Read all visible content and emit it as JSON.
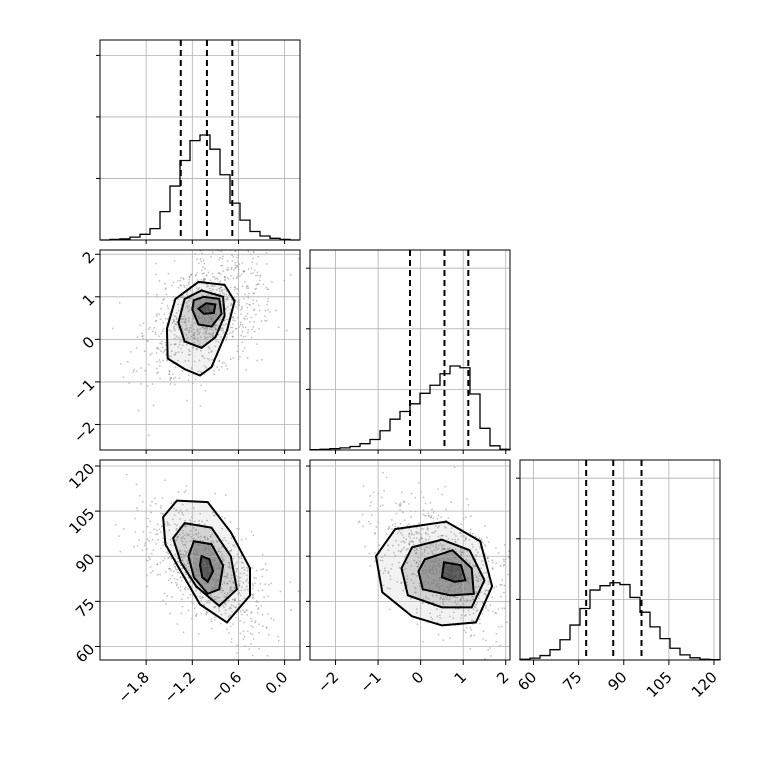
{
  "chart_data": {
    "type": "corner",
    "params": [
      {
        "ticks": [
          -1.8,
          -1.2,
          -0.6,
          0.0
        ],
        "tick_labels": [
          "−1.8",
          "−1.2",
          "−0.6",
          "0.0"
        ],
        "range": [
          -2.4,
          0.2
        ]
      },
      {
        "ticks": [
          -2,
          -1,
          0,
          1,
          2
        ],
        "tick_labels": [
          "−2",
          "−1",
          "0",
          "1",
          "2"
        ],
        "range": [
          -2.6,
          2.1
        ]
      },
      {
        "ticks": [
          60,
          75,
          90,
          105,
          120
        ],
        "tick_labels": [
          "60",
          "75",
          "90",
          "105",
          "120"
        ],
        "range": [
          55.5,
          122
        ]
      }
    ],
    "quantiles": [
      [
        -1.35,
        -1.01,
        -0.68
      ],
      [
        -0.25,
        0.56,
        1.12
      ],
      [
        77.5,
        86.5,
        95.9
      ]
    ],
    "hist_edges": [
      [
        -2.4,
        -2.27,
        -2.14,
        -2.01,
        -1.88,
        -1.75,
        -1.62,
        -1.49,
        -1.36,
        -1.23,
        -1.1,
        -0.97,
        -0.84,
        -0.71,
        -0.58,
        -0.45,
        -0.32,
        -0.19,
        -0.06,
        0.07,
        0.2
      ],
      [
        -2.6,
        -2.365,
        -2.13,
        -1.895,
        -1.66,
        -1.425,
        -1.19,
        -0.955,
        -0.72,
        -0.485,
        -0.25,
        -0.015,
        0.22,
        0.455,
        0.69,
        0.925,
        1.16,
        1.395,
        1.63,
        1.865,
        2.1
      ],
      [
        55.5,
        58.825,
        62.15,
        65.475,
        68.8,
        72.125,
        75.45,
        78.775,
        82.1,
        85.425,
        88.75,
        92.075,
        95.4,
        98.725,
        102.05,
        105.375,
        108.7,
        112.025,
        115.35,
        118.675,
        122
      ]
    ],
    "hist_counts": [
      [
        0,
        1,
        2,
        5,
        10,
        20,
        50,
        95,
        140,
        175,
        185,
        160,
        115,
        65,
        35,
        15,
        7,
        3,
        1,
        0
      ],
      [
        1,
        2,
        4,
        6,
        10,
        18,
        30,
        55,
        88,
        110,
        132,
        162,
        185,
        218,
        240,
        235,
        160,
        62,
        12,
        2
      ],
      [
        2,
        5,
        12,
        28,
        55,
        95,
        140,
        190,
        202,
        210,
        205,
        170,
        130,
        90,
        58,
        32,
        14,
        6,
        2,
        1
      ]
    ],
    "hist_ymax": [
      0.325,
      0.33,
      0.33
    ],
    "hist_ticks": [
      0.1,
      0.2,
      0.3
    ],
    "pairs": [
      {
        "x_param": 0,
        "y_param": 1,
        "contours": [
          [
            [
              -1.12,
              1.35
            ],
            [
              -0.78,
              1.28
            ],
            [
              -0.65,
              0.9
            ],
            [
              -0.75,
              0.2
            ],
            [
              -0.95,
              -0.65
            ],
            [
              -1.1,
              -0.85
            ],
            [
              -1.3,
              -0.7
            ],
            [
              -1.52,
              -0.45
            ],
            [
              -1.53,
              0.25
            ],
            [
              -1.42,
              0.95
            ]
          ],
          [
            [
              -1.08,
              1.15
            ],
            [
              -0.8,
              1.0
            ],
            [
              -0.78,
              0.55
            ],
            [
              -0.9,
              0.05
            ],
            [
              -1.08,
              -0.2
            ],
            [
              -1.3,
              -0.05
            ],
            [
              -1.38,
              0.4
            ],
            [
              -1.3,
              0.95
            ]
          ],
          [
            [
              -1.05,
              1.0
            ],
            [
              -0.85,
              0.95
            ],
            [
              -0.82,
              0.6
            ],
            [
              -0.95,
              0.3
            ],
            [
              -1.12,
              0.35
            ],
            [
              -1.2,
              0.7
            ],
            [
              -1.18,
              0.92
            ]
          ],
          [
            [
              -1.02,
              0.85
            ],
            [
              -0.9,
              0.82
            ],
            [
              -0.92,
              0.62
            ],
            [
              -1.05,
              0.6
            ],
            [
              -1.12,
              0.72
            ]
          ]
        ]
      },
      {
        "x_param": 0,
        "y_param": 2,
        "contours": [
          [
            [
              -1.4,
              108.5
            ],
            [
              -1.0,
              108
            ],
            [
              -0.7,
              98
            ],
            [
              -0.45,
              86
            ],
            [
              -0.45,
              77
            ],
            [
              -0.75,
              68
            ],
            [
              -1.1,
              74
            ],
            [
              -1.35,
              85
            ],
            [
              -1.55,
              94
            ],
            [
              -1.58,
              103
            ]
          ],
          [
            [
              -1.3,
              101
            ],
            [
              -0.95,
              99.5
            ],
            [
              -0.7,
              90
            ],
            [
              -0.62,
              79
            ],
            [
              -0.85,
              73.5
            ],
            [
              -1.15,
              80
            ],
            [
              -1.35,
              88
            ],
            [
              -1.45,
              96
            ]
          ],
          [
            [
              -1.18,
              95
            ],
            [
              -0.95,
              94
            ],
            [
              -0.8,
              87
            ],
            [
              -0.85,
              79
            ],
            [
              -1.0,
              77.5
            ],
            [
              -1.18,
              83
            ],
            [
              -1.25,
              90
            ]
          ],
          [
            [
              -1.08,
              90
            ],
            [
              -0.98,
              89
            ],
            [
              -0.93,
              85
            ],
            [
              -1.0,
              81.5
            ],
            [
              -1.07,
              83
            ],
            [
              -1.1,
              87
            ]
          ]
        ]
      },
      {
        "x_param": 1,
        "y_param": 2,
        "contours": [
          [
            [
              -0.6,
              99
            ],
            [
              0.6,
              101.5
            ],
            [
              1.4,
              95
            ],
            [
              1.68,
              80
            ],
            [
              1.3,
              68
            ],
            [
              0.5,
              67
            ],
            [
              -0.2,
              70
            ],
            [
              -0.9,
              78
            ],
            [
              -1.05,
              90
            ]
          ],
          [
            [
              -0.2,
              93
            ],
            [
              0.5,
              95.5
            ],
            [
              1.15,
              92
            ],
            [
              1.5,
              82
            ],
            [
              1.2,
              73
            ],
            [
              0.5,
              73
            ],
            [
              -0.3,
              77
            ],
            [
              -0.45,
              86
            ]
          ],
          [
            [
              0.1,
              89
            ],
            [
              0.75,
              92
            ],
            [
              1.2,
              86
            ],
            [
              1.25,
              77.5
            ],
            [
              0.7,
              77
            ],
            [
              0.05,
              79
            ],
            [
              -0.05,
              85
            ]
          ],
          [
            [
              0.55,
              88
            ],
            [
              0.95,
              87
            ],
            [
              1.05,
              82
            ],
            [
              0.8,
              81.5
            ],
            [
              0.5,
              83
            ]
          ]
        ]
      }
    ]
  }
}
